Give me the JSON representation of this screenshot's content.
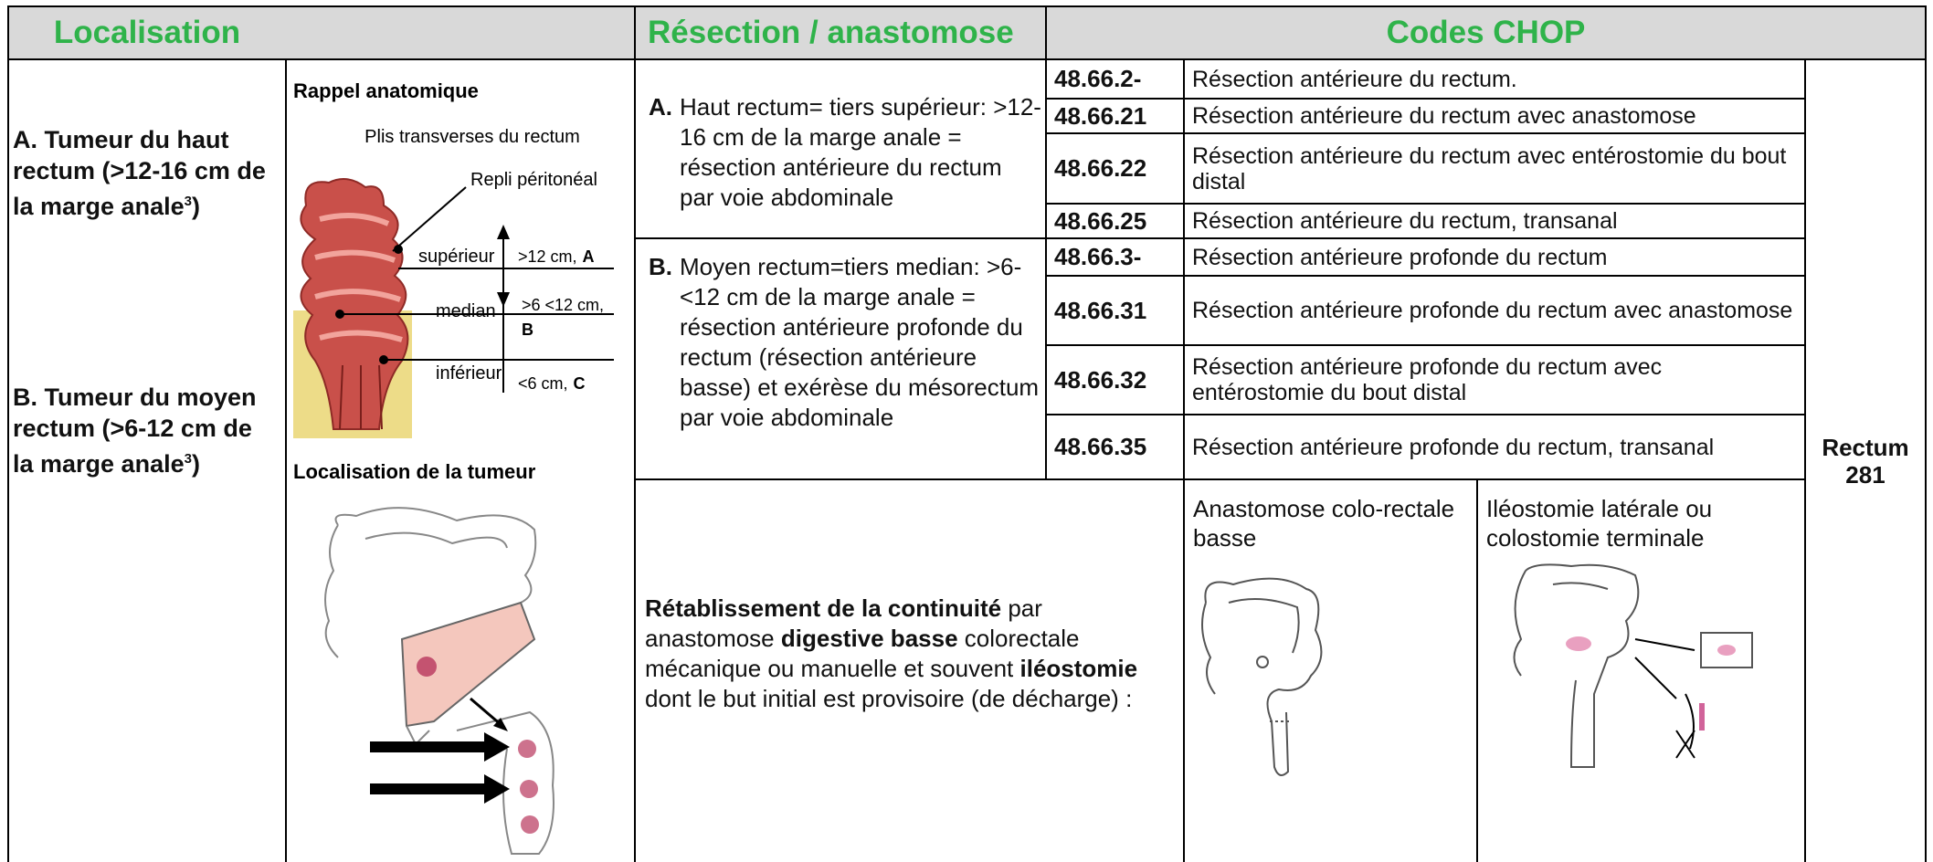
{
  "header": {
    "localisation": "Localisation",
    "resection": "Résection / anastomose",
    "codes": "Codes CHOP"
  },
  "localisation": {
    "a": {
      "text": "A. Tumeur du haut rectum (>12-16 cm de la marge anale",
      "sup": "3",
      "end": ")"
    },
    "b": {
      "text": "B. Tumeur du moyen rectum (>6-12 cm de la marge anale",
      "sup": "3",
      "end": ")"
    }
  },
  "anatomy": {
    "title": "Rappel anatomique",
    "subtitle": "Plis transverses du rectum",
    "fold": "Repli péritonéal",
    "levels": [
      {
        "name": "supérieur",
        "range": ">12 cm,",
        "letter": "A"
      },
      {
        "name": "median",
        "range": ">6 <12 cm,",
        "letter": "B"
      },
      {
        "name": "inférieur",
        "range": "<6 cm,",
        "letter": "C"
      }
    ],
    "tumor_title": "Localisation de la tumeur"
  },
  "resection": {
    "a": {
      "letter": "A.",
      "text": "Haut rectum= tiers supérieur: >12-16 cm de la marge anale = résection antérieure du rectum par voie abdominale"
    },
    "b": {
      "letter": "B.",
      "text": "Moyen rectum=tiers median: >6-<12 cm de la marge anale = résection antérieure profonde du rectum (résection antérieure basse) et exérèse du mésorectum par voie abdominale"
    }
  },
  "codes": [
    {
      "code": "48.66.2-",
      "label": "Résection antérieure du rectum."
    },
    {
      "code": "48.66.21",
      "label": "Résection antérieure du rectum avec anastomose"
    },
    {
      "code": "48.66.22",
      "label": "Résection antérieure du rectum avec entérostomie du bout distal"
    },
    {
      "code": "48.66.25",
      "label": "Résection antérieure du rectum, transanal"
    },
    {
      "code": "48.66.3-",
      "label": "Résection antérieure profonde du rectum"
    },
    {
      "code": "48.66.31",
      "label": "Résection antérieure profonde du rectum avec anastomose"
    },
    {
      "code": "48.66.32",
      "label": "Résection antérieure profonde du rectum avec entérostomie du bout distal"
    },
    {
      "code": "48.66.35",
      "label": "Résection antérieure profonde du rectum, transanal"
    }
  ],
  "restoration": [
    {
      "text": "Rétablissement de la continuité",
      "bold": true
    },
    {
      "text": " par anastomose ",
      "bold": false
    },
    {
      "text": "digestive basse",
      "bold": true
    },
    {
      "text": " colorectale mécanique ou manuelle et souvent ",
      "bold": false
    },
    {
      "text": "iléostomie",
      "bold": true
    },
    {
      "text": " dont le but initial est provisoire (de décharge) :",
      "bold": false
    }
  ],
  "illustrations": [
    {
      "caption": "Anastomose colo-rectale basse"
    },
    {
      "caption": "Iléostomie latérale ou colostomie terminale"
    }
  ],
  "section": {
    "name": "Rectum",
    "number": "281"
  }
}
